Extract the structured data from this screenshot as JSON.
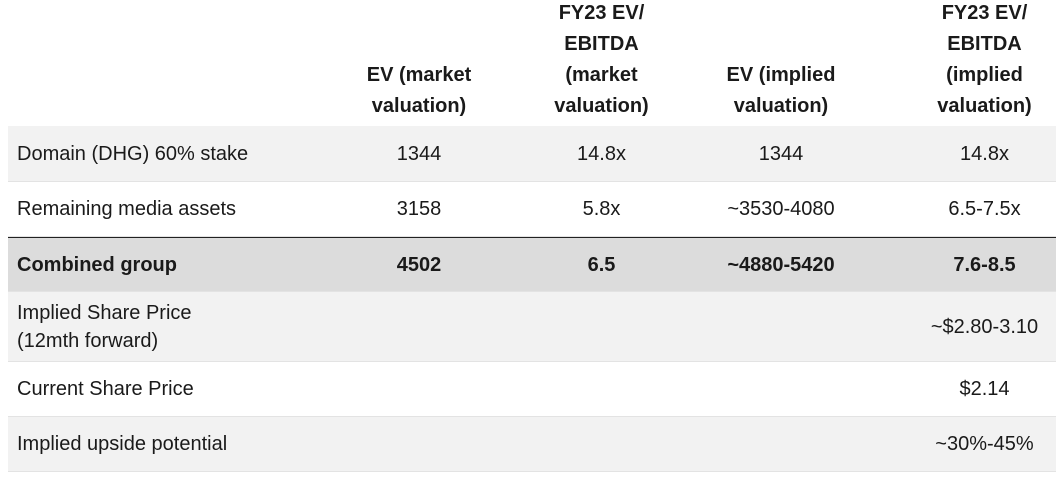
{
  "table": {
    "headers": [
      "",
      "EV (market\nvaluation)",
      "FY23 EV/\nEBITDA\n(market\nvaluation)",
      "EV (implied\nvaluation)",
      "FY23 EV/\nEBITDA\n(implied\nvaluation)"
    ],
    "rows": [
      {
        "label": "Domain (DHG) 60% stake",
        "ev_market": "1344",
        "ebitda_market": "14.8x",
        "ev_implied": "1344",
        "ebitda_implied": "14.8x"
      },
      {
        "label": "Remaining media assets",
        "ev_market": "3158",
        "ebitda_market": "5.8x",
        "ev_implied": "~3530-4080",
        "ebitda_implied": "6.5-7.5x"
      },
      {
        "label": "Combined group",
        "ev_market": "4502",
        "ebitda_market": "6.5",
        "ev_implied": "~4880-5420",
        "ebitda_implied": "7.6-8.5"
      },
      {
        "label": "Implied Share Price\n(12mth forward)",
        "ev_market": "",
        "ebitda_market": "",
        "ev_implied": "",
        "ebitda_implied": "~$2.80-3.10"
      },
      {
        "label": "Current Share Price",
        "ev_market": "",
        "ebitda_market": "",
        "ev_implied": "",
        "ebitda_implied": "$2.14"
      },
      {
        "label": "Implied upside potential",
        "ev_market": "",
        "ebitda_market": "",
        "ev_implied": "",
        "ebitda_implied": "~30%-45%"
      }
    ]
  }
}
